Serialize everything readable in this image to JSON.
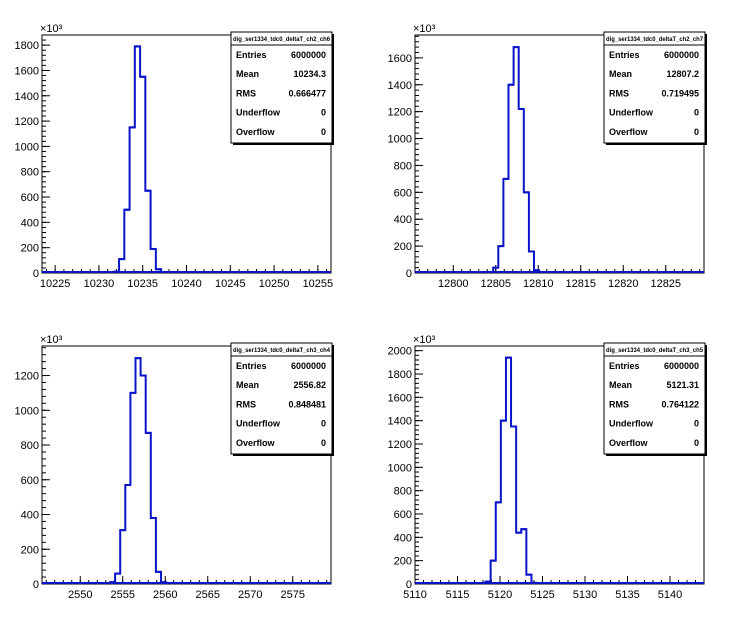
{
  "chart_data": [
    {
      "type": "bar",
      "histogram": true,
      "stats": {
        "name": "dig_ser1334_tdc0_deltaT_ch2_ch6",
        "rows": [
          {
            "label": "Entries",
            "value": "6000000"
          },
          {
            "label": "Mean",
            "value": "10234.3"
          },
          {
            "label": "RMS",
            "value": "0.666477"
          },
          {
            "label": "Underflow",
            "value": "0"
          },
          {
            "label": "Overflow",
            "value": "0"
          }
        ]
      },
      "y_exponent_label": "×10³",
      "xlim": [
        10223.5,
        10256.5
      ],
      "ylim": [
        0,
        1880
      ],
      "xticks": [
        10225,
        10230,
        10235,
        10240,
        10245,
        10250,
        10255
      ],
      "yticks": [
        0,
        200,
        400,
        600,
        800,
        1000,
        1200,
        1400,
        1600,
        1800
      ],
      "bin_width": 0.6,
      "bins": [
        {
          "x": 10232.0,
          "y": 10
        },
        {
          "x": 10232.6,
          "y": 110
        },
        {
          "x": 10233.2,
          "y": 500
        },
        {
          "x": 10233.8,
          "y": 1150
        },
        {
          "x": 10234.4,
          "y": 1790
        },
        {
          "x": 10235.0,
          "y": 1550
        },
        {
          "x": 10235.6,
          "y": 650
        },
        {
          "x": 10236.2,
          "y": 190
        },
        {
          "x": 10236.8,
          "y": 30
        }
      ]
    },
    {
      "type": "bar",
      "histogram": true,
      "stats": {
        "name": "dig_ser1334_tdc0_deltaT_ch2_ch7",
        "rows": [
          {
            "label": "Entries",
            "value": "6000000"
          },
          {
            "label": "Mean",
            "value": "12807.2"
          },
          {
            "label": "RMS",
            "value": "0.719495"
          },
          {
            "label": "Underflow",
            "value": "0"
          },
          {
            "label": "Overflow",
            "value": "0"
          }
        ]
      },
      "y_exponent_label": "×10³",
      "xlim": [
        12795.5,
        12829.5
      ],
      "ylim": [
        0,
        1770
      ],
      "xticks": [
        12800,
        12805,
        12810,
        12815,
        12820,
        12825
      ],
      "yticks": [
        0,
        200,
        400,
        600,
        800,
        1000,
        1200,
        1400,
        1600
      ],
      "bin_width": 0.6,
      "bins": [
        {
          "x": 12805.0,
          "y": 40
        },
        {
          "x": 12805.6,
          "y": 200
        },
        {
          "x": 12806.2,
          "y": 700
        },
        {
          "x": 12806.8,
          "y": 1400
        },
        {
          "x": 12807.4,
          "y": 1680
        },
        {
          "x": 12808.0,
          "y": 1220
        },
        {
          "x": 12808.6,
          "y": 600
        },
        {
          "x": 12809.2,
          "y": 160
        },
        {
          "x": 12809.8,
          "y": 20
        }
      ]
    },
    {
      "type": "bar",
      "histogram": true,
      "stats": {
        "name": "dig_ser1334_tdc0_deltaT_ch3_ch4",
        "rows": [
          {
            "label": "Entries",
            "value": "6000000"
          },
          {
            "label": "Mean",
            "value": "2556.82"
          },
          {
            "label": "RMS",
            "value": "0.848481"
          },
          {
            "label": "Underflow",
            "value": "0"
          },
          {
            "label": "Overflow",
            "value": "0"
          }
        ]
      },
      "y_exponent_label": "×10³",
      "xlim": [
        2545.5,
        2579.5
      ],
      "ylim": [
        0,
        1370
      ],
      "xticks": [
        2550,
        2555,
        2560,
        2565,
        2570,
        2575
      ],
      "yticks": [
        0,
        200,
        400,
        600,
        800,
        1000,
        1200
      ],
      "bin_width": 0.6,
      "bins": [
        {
          "x": 2553.8,
          "y": 10
        },
        {
          "x": 2554.4,
          "y": 60
        },
        {
          "x": 2555.0,
          "y": 310
        },
        {
          "x": 2555.6,
          "y": 570
        },
        {
          "x": 2556.2,
          "y": 1100
        },
        {
          "x": 2556.8,
          "y": 1300
        },
        {
          "x": 2557.4,
          "y": 1200
        },
        {
          "x": 2558.0,
          "y": 870
        },
        {
          "x": 2558.6,
          "y": 380
        },
        {
          "x": 2559.2,
          "y": 70
        },
        {
          "x": 2559.8,
          "y": 10
        }
      ]
    },
    {
      "type": "bar",
      "histogram": true,
      "stats": {
        "name": "dig_ser1334_tdc0_deltaT_ch3_ch5",
        "rows": [
          {
            "label": "Entries",
            "value": "6000000"
          },
          {
            "label": "Mean",
            "value": "5121.31"
          },
          {
            "label": "RMS",
            "value": "0.764122"
          },
          {
            "label": "Underflow",
            "value": "0"
          },
          {
            "label": "Overflow",
            "value": "0"
          }
        ]
      },
      "y_exponent_label": "×10³",
      "xlim": [
        5110,
        5144
      ],
      "ylim": [
        0,
        2040
      ],
      "xticks": [
        5110,
        5115,
        5120,
        5125,
        5130,
        5135,
        5140
      ],
      "yticks": [
        0,
        200,
        400,
        600,
        800,
        1000,
        1200,
        1400,
        1600,
        1800,
        2000
      ],
      "bin_width": 0.6,
      "bins": [
        {
          "x": 5118.6,
          "y": 20
        },
        {
          "x": 5119.2,
          "y": 200
        },
        {
          "x": 5119.8,
          "y": 700
        },
        {
          "x": 5120.4,
          "y": 1400
        },
        {
          "x": 5121.0,
          "y": 1940
        },
        {
          "x": 5121.6,
          "y": 1350
        },
        {
          "x": 5122.2,
          "y": 440
        },
        {
          "x": 5122.8,
          "y": 470
        },
        {
          "x": 5123.4,
          "y": 80
        },
        {
          "x": 5124.0,
          "y": 10
        }
      ]
    }
  ],
  "colors": {
    "line": "#0a14c8",
    "axis": "#000000",
    "background": "#ffffff"
  }
}
